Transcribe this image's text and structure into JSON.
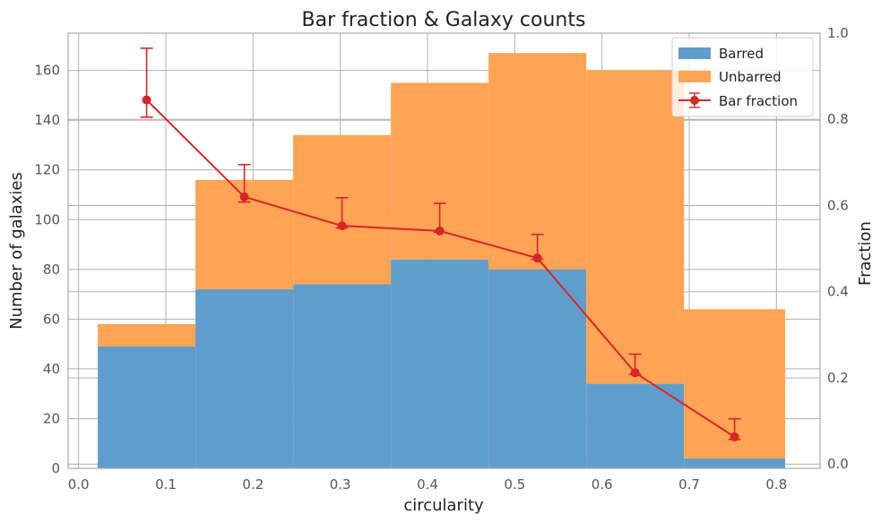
{
  "chart_data": {
    "type": "bar",
    "title": "Bar fraction & Galaxy counts",
    "xlabel": "circularity",
    "ylabel": "Number of galaxies",
    "ylabel_right": "Fraction",
    "xlim": [
      -0.012,
      0.85
    ],
    "ylim": [
      0,
      175
    ],
    "ylim_right": [
      -0.01,
      1.0
    ],
    "xticks": [
      0.0,
      0.1,
      0.2,
      0.3,
      0.4,
      0.5,
      0.6,
      0.7,
      0.8
    ],
    "xtick_labels": [
      "0.0",
      "0.1",
      "0.2",
      "0.3",
      "0.4",
      "0.5",
      "0.6",
      "0.7",
      "0.8"
    ],
    "yticks": [
      0,
      20,
      40,
      60,
      80,
      100,
      120,
      140,
      160
    ],
    "ytick_labels": [
      "0",
      "20",
      "40",
      "60",
      "80",
      "100",
      "120",
      "140",
      "160"
    ],
    "yticks_right": [
      0.0,
      0.2,
      0.4,
      0.6,
      0.8,
      1.0
    ],
    "ytick_right_labels": [
      "0.0",
      "0.2",
      "0.4",
      "0.6",
      "0.8",
      "1.0"
    ],
    "grid": true,
    "legend_position": "top-right",
    "bin_edges": [
      0.022,
      0.134,
      0.246,
      0.358,
      0.47,
      0.582,
      0.694,
      0.81
    ],
    "series": [
      {
        "name": "Barred",
        "type": "bar",
        "color": "#5f9ecc",
        "values": [
          49,
          72,
          74,
          84,
          80,
          34,
          4
        ]
      },
      {
        "name": "Unbarred",
        "type": "bar",
        "color": "#ffa354",
        "values": [
          9,
          44,
          60,
          71,
          87,
          126,
          60
        ]
      },
      {
        "name": "Bar fraction",
        "type": "line",
        "color": "#d62728",
        "x": [
          0.078,
          0.19,
          0.302,
          0.414,
          0.526,
          0.638,
          0.752
        ],
        "y": [
          0.845,
          0.62,
          0.553,
          0.541,
          0.478,
          0.212,
          0.063
        ],
        "yerr_low": [
          0.805,
          0.608,
          0.548,
          0.538,
          0.475,
          0.208,
          0.057
        ],
        "yerr_high": [
          0.965,
          0.695,
          0.618,
          0.605,
          0.533,
          0.255,
          0.105
        ]
      }
    ]
  }
}
